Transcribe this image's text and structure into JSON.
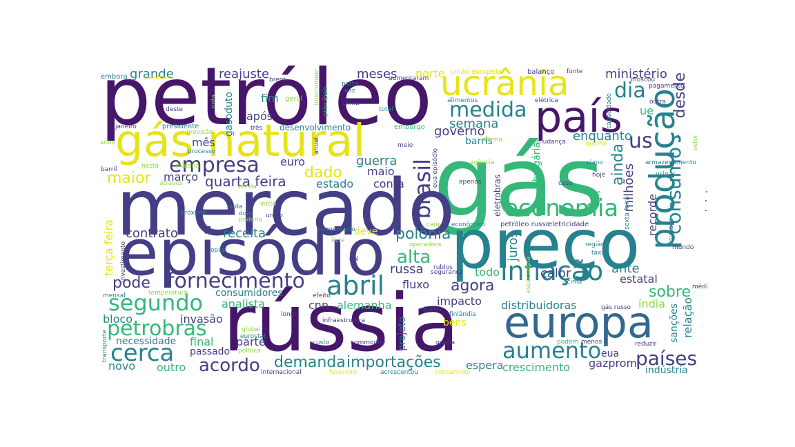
{
  "palette": {
    "purple": "#46166b",
    "indigo": "#433e85",
    "blue": "#31688e",
    "teal": "#26828e",
    "green": "#35b779",
    "lime": "#90d743",
    "yellow": "#e5e419"
  },
  "words": [
    {
      "id": "petroleo",
      "text": "petróleo",
      "color": "#46166b"
    },
    {
      "id": "gas",
      "text": "gás",
      "color": "#35b779"
    },
    {
      "id": "mercado",
      "text": "mercado",
      "color": "#433e85"
    },
    {
      "id": "russia",
      "text": "rússia",
      "color": "#46166b"
    },
    {
      "id": "episodio",
      "text": "episódio",
      "color": "#433e85"
    },
    {
      "id": "preco",
      "text": "preço",
      "color": "#26828e"
    },
    {
      "id": "gas-natural",
      "text": "gás natural",
      "color": "#e5e419"
    },
    {
      "id": "europa",
      "text": "europa",
      "color": "#31688e"
    },
    {
      "id": "ucrania",
      "text": "ucrânia",
      "color": "#e5e419"
    },
    {
      "id": "pais",
      "text": "país",
      "color": "#46166b"
    },
    {
      "id": "producao",
      "text": "produção",
      "color": "#26828e"
    },
    {
      "id": "inflacao",
      "text": "inflação",
      "color": "#26828e"
    },
    {
      "id": "economia",
      "text": "economia",
      "color": "#35b779"
    },
    {
      "id": "aumento",
      "text": "aumento",
      "color": "#26828e"
    },
    {
      "id": "abril",
      "text": "abril",
      "color": "#26828e"
    },
    {
      "id": "fornecimento",
      "text": "fornecimento",
      "color": "#433e85"
    },
    {
      "id": "segundo",
      "text": "segundo",
      "color": "#35b779"
    },
    {
      "id": "cerca",
      "text": "cerca",
      "color": "#26828e"
    },
    {
      "id": "petrobras",
      "text": "petrobras",
      "color": "#35b779"
    },
    {
      "id": "empresa",
      "text": "empresa",
      "color": "#433e85"
    },
    {
      "id": "medida",
      "text": "medida",
      "color": "#26828e"
    },
    {
      "id": "brasil",
      "text": "brasil",
      "color": "#433e85"
    },
    {
      "id": "paises",
      "text": "países",
      "color": "#433e85"
    },
    {
      "id": "consumo",
      "text": "consumo",
      "color": "#26828e"
    },
    {
      "id": "us",
      "text": "us",
      "color": "#433e85"
    },
    {
      "id": "dia",
      "text": "dia",
      "color": "#26828e"
    },
    {
      "id": "alta",
      "text": "alta",
      "color": "#35b779"
    },
    {
      "id": "acordo",
      "text": "acordo",
      "color": "#433e85"
    },
    {
      "id": "demanda",
      "text": "demanda",
      "color": "#26828e"
    },
    {
      "id": "importacoes",
      "text": "importações",
      "color": "#26828e"
    },
    {
      "id": "polonia",
      "text": "polônia",
      "color": "#26828e"
    },
    {
      "id": "maior",
      "text": "maior",
      "color": "#e5e419"
    },
    {
      "id": "pode",
      "text": "pode",
      "color": "#433e85"
    },
    {
      "id": "quarta-feira",
      "text": "quarta feira",
      "color": "#433e85"
    },
    {
      "id": "dado",
      "text": "dado",
      "color": "#e5e419"
    },
    {
      "id": "agora",
      "text": "agora",
      "color": "#433e85"
    },
    {
      "id": "sobre",
      "text": "sobre",
      "color": "#35b779"
    },
    {
      "id": "desde",
      "text": "desde",
      "color": "#433e85"
    },
    {
      "id": "ainda",
      "text": "ainda",
      "color": "#26828e"
    },
    {
      "id": "milhoes",
      "text": "milhões",
      "color": "#433e85"
    },
    {
      "id": "grande",
      "text": "grande",
      "color": "#26828e"
    },
    {
      "id": "reajuste",
      "text": "reajuste",
      "color": "#433e85"
    },
    {
      "id": "meses",
      "text": "meses",
      "color": "#433e85"
    },
    {
      "id": "norte",
      "text": "norte",
      "color": "#e5e419"
    },
    {
      "id": "ministerio",
      "text": "ministério",
      "color": "#433e85"
    },
    {
      "id": "semana",
      "text": "semana",
      "color": "#26828e"
    },
    {
      "id": "governo",
      "text": "governo",
      "color": "#433e85"
    },
    {
      "id": "enquanto",
      "text": "enquanto",
      "color": "#26828e"
    },
    {
      "id": "guerra",
      "text": "guerra",
      "color": "#26828e"
    },
    {
      "id": "contrato",
      "text": "contrato",
      "color": "#433e85"
    },
    {
      "id": "receita",
      "text": "receita",
      "color": "#26828e"
    },
    {
      "id": "fim",
      "text": "fim",
      "color": "#26828e"
    },
    {
      "id": "apos",
      "text": "após",
      "color": "#433e85"
    },
    {
      "id": "mes",
      "text": "mês",
      "color": "#433e85"
    },
    {
      "id": "marco",
      "text": "março",
      "color": "#433e85"
    },
    {
      "id": "euro",
      "text": "euro",
      "color": "#433e85"
    },
    {
      "id": "maio",
      "text": "maio",
      "color": "#433e85"
    },
    {
      "id": "conta",
      "text": "conta",
      "color": "#433e85"
    },
    {
      "id": "estado",
      "text": "estado",
      "color": "#26828e"
    },
    {
      "id": "juros",
      "text": "juros",
      "color": "#26828e"
    },
    {
      "id": "calor",
      "text": "calor",
      "color": "#433e85"
    },
    {
      "id": "ante",
      "text": "ante",
      "color": "#26828e"
    },
    {
      "id": "estatal",
      "text": "estatal",
      "color": "#433e85"
    },
    {
      "id": "recorde",
      "text": "recorde",
      "color": "#433e85"
    },
    {
      "id": "ministro",
      "text": "ministro",
      "color": "#433e85"
    },
    {
      "id": "todo",
      "text": "todo",
      "color": "#35b779"
    },
    {
      "id": "russa",
      "text": "russa",
      "color": "#433e85"
    },
    {
      "id": "fluxo",
      "text": "fluxo",
      "color": "#433e85"
    },
    {
      "id": "impacto",
      "text": "impacto",
      "color": "#433e85"
    },
    {
      "id": "distribuidoras",
      "text": "distribuidoras",
      "color": "#26828e"
    },
    {
      "id": "india",
      "text": "índia",
      "color": "#90d743"
    },
    {
      "id": "relacao",
      "text": "relação",
      "color": "#26828e"
    },
    {
      "id": "sancoes",
      "text": "sanções",
      "color": "#26828e"
    },
    {
      "id": "analista",
      "text": "analista",
      "color": "#35b779"
    },
    {
      "id": "cnn",
      "text": "cnn",
      "color": "#433e85"
    },
    {
      "id": "alemanha",
      "text": "alemanha",
      "color": "#35b779"
    },
    {
      "id": "consumidores",
      "text": "consumidores",
      "color": "#26828e"
    },
    {
      "id": "invasao",
      "text": "invasão",
      "color": "#433e85"
    },
    {
      "id": "bloco",
      "text": "bloco",
      "color": "#26828e"
    },
    {
      "id": "necessidade",
      "text": "necessidade",
      "color": "#26828e"
    },
    {
      "id": "final",
      "text": "final",
      "color": "#35b779"
    },
    {
      "id": "parte",
      "text": "parte",
      "color": "#433e85"
    },
    {
      "id": "passado",
      "text": "passado",
      "color": "#433e85"
    },
    {
      "id": "novo",
      "text": "novo",
      "color": "#26828e"
    },
    {
      "id": "outro",
      "text": "outro",
      "color": "#35b779"
    },
    {
      "id": "espera",
      "text": "espera",
      "color": "#26828e"
    },
    {
      "id": "crescimento",
      "text": "crescimento",
      "color": "#35b779"
    },
    {
      "id": "gazprom",
      "text": "gazprom",
      "color": "#433e85"
    },
    {
      "id": "eua",
      "text": "eua",
      "color": "#433e85"
    },
    {
      "id": "industria",
      "text": "indústria",
      "color": "#26828e"
    },
    {
      "id": "bens",
      "text": "bens",
      "color": "#e5e419"
    },
    {
      "id": "projeto",
      "text": "projeto",
      "color": "#26828e"
    },
    {
      "id": "terca-feira",
      "text": "terça feira",
      "color": "#e5e419"
    },
    {
      "id": "deve",
      "text": "deve",
      "color": "#e5e419"
    },
    {
      "id": "gasoduto",
      "text": "gasoduto",
      "color": "#26828e"
    },
    {
      "id": "desenvolvimento",
      "text": "desenvolvimento",
      "color": "#26828e"
    },
    {
      "id": "barris",
      "text": "barris",
      "color": "#26828e"
    },
    {
      "id": "ue",
      "text": "ue",
      "color": "#35b779"
    },
    {
      "id": "bulgaria",
      "text": "bulgária",
      "color": "#35b779"
    },
    {
      "id": "eletrobras",
      "text": "eletrobras",
      "color": "#433e85"
    },
    {
      "id": "embora",
      "text": "embora",
      "color": "#26828e"
    },
    {
      "id": "mostram",
      "text": "mostram",
      "color": "#e5e419"
    },
    {
      "id": "brent",
      "text": "brent",
      "color": "#433e85"
    },
    {
      "id": "nota",
      "text": "nota",
      "color": "#90d743"
    },
    {
      "id": "geral",
      "text": "geral",
      "color": "#90d743"
    },
    {
      "id": "interromper",
      "text": "interromper",
      "color": "#90d743"
    },
    {
      "id": "principais",
      "text": "principais",
      "color": "#35b779"
    },
    {
      "id": "partir",
      "text": "partir",
      "color": "#26828e"
    },
    {
      "id": "vez",
      "text": "vez",
      "color": "#26828e"
    },
    {
      "id": "aumentaram",
      "text": "aumentaram",
      "color": "#433e85"
    },
    {
      "id": "uniao-europeia",
      "text": "união europeia",
      "color": "#e5e419"
    },
    {
      "id": "balanco",
      "text": "balanço",
      "color": "#433e85"
    },
    {
      "id": "fonte",
      "text": "fonte",
      "color": "#433e85"
    },
    {
      "id": "moscou",
      "text": "moscou",
      "color": "#433e85"
    },
    {
      "id": "pagamento",
      "text": "pagamento",
      "color": "#433e85"
    },
    {
      "id": "outra",
      "text": "outra",
      "color": "#433e85"
    },
    {
      "id": "capacidade",
      "text": "capacidade",
      "color": "#26828e"
    },
    {
      "id": "eletrica",
      "text": "elétrica",
      "color": "#433e85"
    },
    {
      "id": "alimentos",
      "text": "alimentos",
      "color": "#26828e"
    },
    {
      "id": "china",
      "text": "china",
      "color": "#433e85"
    },
    {
      "id": "total",
      "text": "total",
      "color": "#26828e"
    },
    {
      "id": "deste",
      "text": "deste",
      "color": "#433e85"
    },
    {
      "id": "janeiro",
      "text": "janeiro",
      "color": "#433e85"
    },
    {
      "id": "presidente",
      "text": "presidente",
      "color": "#26828e"
    },
    {
      "id": "tres",
      "text": "três",
      "color": "#433e85"
    },
    {
      "id": "previsao",
      "text": "previsão",
      "color": "#90d743"
    },
    {
      "id": "processo",
      "text": "processo",
      "color": "#26828e"
    },
    {
      "id": "anos",
      "text": "anos",
      "color": "#90d743"
    },
    {
      "id": "embargo",
      "text": "embargo",
      "color": "#35b779"
    },
    {
      "id": "meio",
      "text": "meio",
      "color": "#433e85"
    },
    {
      "id": "anual",
      "text": "anual",
      "color": "#433e85"
    },
    {
      "id": "afirma",
      "text": "afirma",
      "color": "#90d743"
    },
    {
      "id": "mudanca",
      "text": "mudança",
      "color": "#433e85"
    },
    {
      "id": "manha",
      "text": "manhã",
      "color": "#e5e419"
    },
    {
      "id": "setor",
      "text": "setor",
      "color": "#90d743"
    },
    {
      "id": "armazenamento",
      "text": "armazenamento",
      "color": "#26828e"
    },
    {
      "id": "barril",
      "text": "barril",
      "color": "#433e85"
    },
    {
      "id": "nesta",
      "text": "nesta",
      "color": "#90d743"
    },
    {
      "id": "maioria",
      "text": "maioria",
      "color": "#90d743"
    },
    {
      "id": "comunicado",
      "text": "comunicado",
      "color": "#26828e"
    },
    {
      "id": "eua-episodio",
      "text": "eua episódio",
      "color": "#433e85"
    },
    {
      "id": "agencia",
      "text": "agência",
      "color": "#90d743"
    },
    {
      "id": "plano",
      "text": "plano",
      "color": "#26828e"
    },
    {
      "id": "usinas",
      "text": "usinas",
      "color": "#26828e"
    },
    {
      "id": "atraves",
      "text": "através",
      "color": "#90d743"
    },
    {
      "id": "apenas",
      "text": "apenas",
      "color": "#433e85"
    },
    {
      "id": "caso",
      "text": "caso",
      "color": "#433e85"
    },
    {
      "id": "hoje",
      "text": "hoje",
      "color": "#433e85"
    },
    {
      "id": "venda",
      "text": "venda",
      "color": "#90d743"
    },
    {
      "id": "inicio",
      "text": "início",
      "color": "#90d743"
    },
    {
      "id": "onda",
      "text": "onda",
      "color": "#26828e"
    },
    {
      "id": "dois",
      "text": "dois",
      "color": "#26828e"
    },
    {
      "id": "corte",
      "text": "corte",
      "color": "#35b779"
    },
    {
      "id": "sexta-feira",
      "text": "sexta feira",
      "color": "#26828e"
    },
    {
      "id": "proxima",
      "text": "próxima",
      "color": "#26828e"
    },
    {
      "id": "poderia",
      "text": "poderia",
      "color": "#90d743"
    },
    {
      "id": "uniao",
      "text": "união",
      "color": "#433e85"
    },
    {
      "id": "investimento",
      "text": "investimento",
      "color": "#433e85"
    },
    {
      "id": "caiu",
      "text": "caiu",
      "color": "#90d743"
    },
    {
      "id": "economico",
      "text": "econômico",
      "color": "#26828e"
    },
    {
      "id": "petroleo-russo",
      "text": "petróleo russo",
      "color": "#433e85"
    },
    {
      "id": "eletricidade",
      "text": "eletricidade",
      "color": "#433e85"
    },
    {
      "id": "risco",
      "text": "risco",
      "color": "#433e85"
    },
    {
      "id": "livre",
      "text": "livre",
      "color": "#90d743"
    },
    {
      "id": "opep",
      "text": "opep",
      "color": "#26828e"
    },
    {
      "id": "operadora",
      "text": "operadora",
      "color": "#90d743"
    },
    {
      "id": "regiao",
      "text": "região",
      "color": "#26828e"
    },
    {
      "id": "taxa",
      "text": "taxa",
      "color": "#26828e"
    },
    {
      "id": "podcast-transmissao",
      "text": "podcast transmissão",
      "color": "#90d743"
    },
    {
      "id": "mundo",
      "text": "mundo",
      "color": "#433e85"
    },
    {
      "id": "resultado",
      "text": "resultado",
      "color": "#26828e"
    },
    {
      "id": "gnl",
      "text": "gnl",
      "color": "#433e85"
    },
    {
      "id": "rublos",
      "text": "rublos",
      "color": "#433e85"
    },
    {
      "id": "especialista",
      "text": "especialista",
      "color": "#90d743"
    },
    {
      "id": "seguranca",
      "text": "segurança",
      "color": "#433e85"
    },
    {
      "id": "acima",
      "text": "acima",
      "color": "#26828e"
    },
    {
      "id": "medio",
      "text": "médio",
      "color": "#433e85"
    },
    {
      "id": "mensal",
      "text": "mensal",
      "color": "#26828e"
    },
    {
      "id": "temperatura",
      "text": "temperatura",
      "color": "#90d743"
    },
    {
      "id": "efeito",
      "text": "efeito",
      "color": "#433e85"
    },
    {
      "id": "longo",
      "text": "longo",
      "color": "#433e85"
    },
    {
      "id": "diretor",
      "text": "diretor",
      "color": "#433e85"
    },
    {
      "id": "gas-russo",
      "text": "gás russo",
      "color": "#433e85"
    },
    {
      "id": "transporte",
      "text": "transporte",
      "color": "#26828e"
    },
    {
      "id": "global",
      "text": "global",
      "color": "#90d743"
    },
    {
      "id": "eurostat",
      "text": "eurostat",
      "color": "#26828e"
    },
    {
      "id": "politica",
      "text": "política",
      "color": "#90d743"
    },
    {
      "id": "custo",
      "text": "custo",
      "color": "#26828e"
    },
    {
      "id": "commodity",
      "text": "commodity",
      "color": "#433e85"
    },
    {
      "id": "queda",
      "text": "queda",
      "color": "#433e85"
    },
    {
      "id": "podem",
      "text": "podem",
      "color": "#35b779"
    },
    {
      "id": "menos",
      "text": "menos",
      "color": "#433e85"
    },
    {
      "id": "reduzir",
      "text": "reduzir",
      "color": "#433e85"
    },
    {
      "id": "infraestrutura",
      "text": "infraestrutura",
      "color": "#433e85"
    },
    {
      "id": "finlandia",
      "text": "finlândia",
      "color": "#26828e"
    },
    {
      "id": "internacional",
      "text": "internacional",
      "color": "#433e85"
    },
    {
      "id": "fevereiro",
      "text": "fevereiro",
      "color": "#e5e419"
    },
    {
      "id": "acrescentou",
      "text": "acrescentou",
      "color": "#26828e"
    },
    {
      "id": "consumidor",
      "text": "consumidor",
      "color": "#e5e419"
    }
  ]
}
